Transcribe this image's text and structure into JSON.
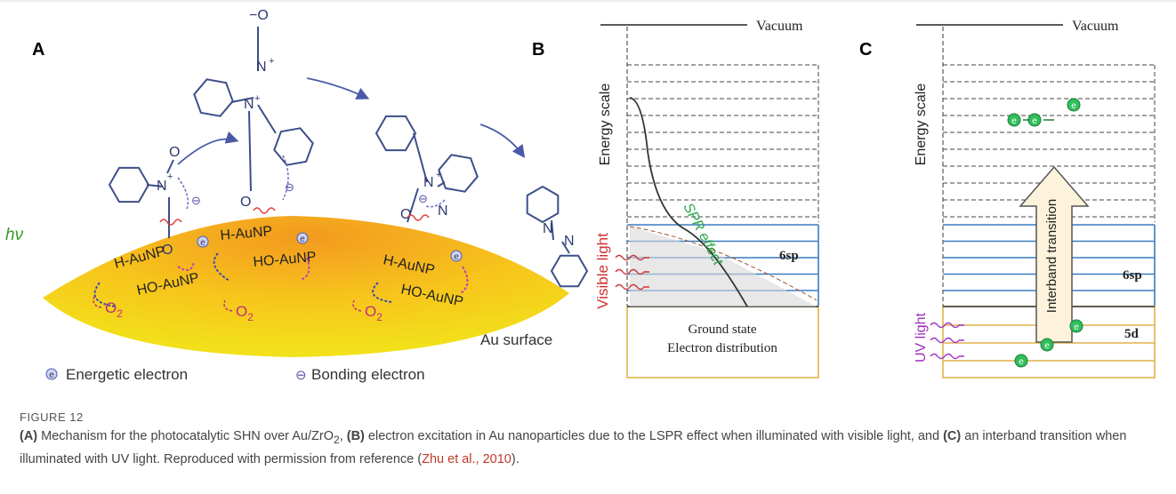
{
  "panel_a": {
    "label": "A",
    "hv": "hν",
    "h_aunp": [
      "H-AuNP",
      "H-AuNP",
      "H-AuNP"
    ],
    "ho_aunp": [
      "HO-AuNP",
      "HO-AuNP",
      "HO-AuNP"
    ],
    "o2": [
      {
        "base": "O",
        "sub": "2"
      },
      {
        "base": "O",
        "sub": "2"
      },
      {
        "base": "O",
        "sub": "2"
      }
    ],
    "surface": "Au surface",
    "atoms": [
      "O",
      "N",
      "+",
      "O",
      "−O",
      "N",
      "+",
      "N",
      "+",
      "O",
      "N",
      "+",
      "N",
      "O",
      "N",
      "N"
    ],
    "legend": [
      {
        "symbol": "e",
        "label": "Energetic electron"
      },
      {
        "symbol": "⊖",
        "label": "Bonding electron"
      }
    ]
  },
  "panel_b": {
    "label": "B",
    "vacuum": "Vacuum",
    "energy_scale": "Energy scale",
    "spr": "SPR effect",
    "band": "6sp",
    "light": "Visible light",
    "ground": [
      "Ground state",
      "Electron distribution"
    ]
  },
  "panel_c": {
    "label": "C",
    "vacuum": "Vacuum",
    "energy_scale": "Energy scale",
    "transition": "Interband transition",
    "band": "6sp",
    "d_band": "5d",
    "light": "UV light"
  },
  "caption": {
    "number": "FIGURE 12",
    "segments": [
      {
        "text": "(A)",
        "style": "bold"
      },
      {
        "text": " Mechanism for the photocatalytic SHN over Au/ZrO"
      },
      {
        "text": "2",
        "style": "sub"
      },
      {
        "text": ", "
      },
      {
        "text": "(B)",
        "style": "bold"
      },
      {
        "text": " electron excitation in Au nanoparticles due to the LSPR effect when illuminated with visible light, and "
      },
      {
        "text": "(C)",
        "style": "bold"
      },
      {
        "text": " an interband transition when illuminated with UV light. Reproduced with permission from reference ("
      },
      {
        "text": "Zhu et al., 2010",
        "style": "link"
      },
      {
        "text": ")."
      }
    ]
  }
}
